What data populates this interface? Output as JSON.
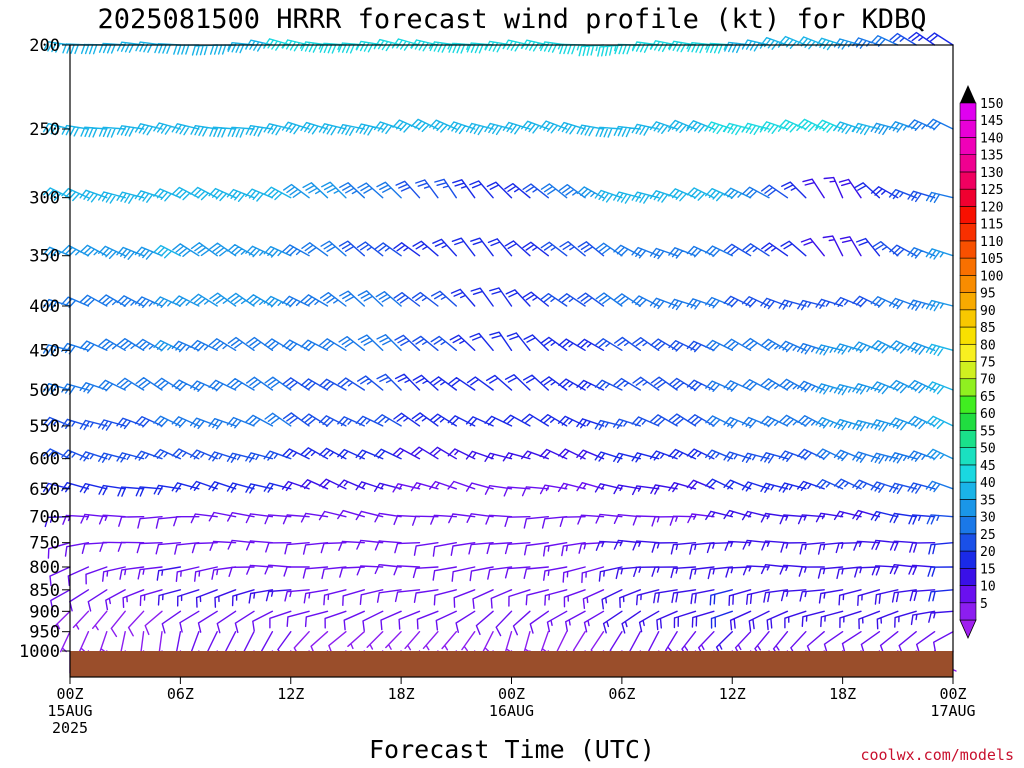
{
  "chart_data": {
    "type": "wind-barb time-height",
    "title": "2025081500 HRRR forecast wind profile (kt) for KDBQ",
    "xlabel": "Forecast Time (UTC)",
    "credit": "coolwx.com/models",
    "y_axis": {
      "scale": "log-pressure, inverted",
      "ylim": [
        1000,
        200
      ],
      "ticks": [
        200,
        250,
        300,
        350,
        400,
        450,
        500,
        550,
        600,
        650,
        700,
        750,
        800,
        850,
        900,
        950,
        1000
      ]
    },
    "x_axis": {
      "xlim_hours": [
        0,
        48
      ],
      "ticks": [
        {
          "h": 0,
          "line1": "00Z",
          "line2": "15AUG",
          "line3": "2025"
        },
        {
          "h": 6,
          "line1": "06Z",
          "line2": "",
          "line3": ""
        },
        {
          "h": 12,
          "line1": "12Z",
          "line2": "",
          "line3": ""
        },
        {
          "h": 18,
          "line1": "18Z",
          "line2": "",
          "line3": ""
        },
        {
          "h": 24,
          "line1": "00Z",
          "line2": "16AUG",
          "line3": ""
        },
        {
          "h": 30,
          "line1": "06Z",
          "line2": "",
          "line3": ""
        },
        {
          "h": 36,
          "line1": "12Z",
          "line2": "",
          "line3": ""
        },
        {
          "h": 42,
          "line1": "18Z",
          "line2": "",
          "line3": ""
        },
        {
          "h": 48,
          "line1": "00Z",
          "line2": "17AUG",
          "line3": ""
        }
      ]
    },
    "ground_color": "#9a4e2b",
    "colorbar": {
      "units": "kt",
      "levels": [
        5,
        10,
        15,
        20,
        25,
        30,
        35,
        40,
        45,
        50,
        55,
        60,
        65,
        70,
        75,
        80,
        85,
        90,
        95,
        100,
        105,
        110,
        115,
        120,
        125,
        130,
        135,
        140,
        145,
        150
      ],
      "colors": [
        "#8c1ef0",
        "#6a10f0",
        "#3a10e8",
        "#1a2ae8",
        "#1a50e8",
        "#1a78e8",
        "#1a96e8",
        "#1ab4e8",
        "#1ad8e0",
        "#1ae0c0",
        "#1ae08a",
        "#20dd40",
        "#40ee20",
        "#90f020",
        "#d0f020",
        "#f8f020",
        "#f8e000",
        "#f8c800",
        "#f8aa00",
        "#f88c00",
        "#f87000",
        "#f85000",
        "#f83000",
        "#f81000",
        "#f00030",
        "#f00060",
        "#f00090",
        "#f000b8",
        "#e800d8",
        "#e000f0"
      ]
    },
    "wind_profile_kt": {
      "levels_hPa": [
        1000,
        950,
        900,
        850,
        800,
        750,
        700,
        650,
        600,
        550,
        500,
        450,
        400,
        350,
        300,
        250,
        200
      ],
      "anchor_hours": [
        0,
        6,
        12,
        18,
        24,
        30,
        36,
        42,
        48
      ],
      "speed_rows": [
        [
          5,
          5,
          5,
          5,
          5,
          5,
          5,
          5,
          5
        ],
        [
          5,
          10,
          10,
          5,
          5,
          10,
          15,
          10,
          10
        ],
        [
          5,
          10,
          10,
          10,
          10,
          15,
          20,
          15,
          15
        ],
        [
          10,
          15,
          15,
          10,
          10,
          15,
          20,
          15,
          20
        ],
        [
          10,
          15,
          10,
          10,
          10,
          15,
          15,
          15,
          20
        ],
        [
          10,
          10,
          10,
          10,
          10,
          15,
          15,
          15,
          20
        ],
        [
          15,
          10,
          10,
          10,
          10,
          10,
          15,
          15,
          25
        ],
        [
          20,
          20,
          20,
          15,
          10,
          15,
          20,
          25,
          30
        ],
        [
          25,
          25,
          25,
          20,
          15,
          20,
          25,
          30,
          35
        ],
        [
          25,
          30,
          30,
          25,
          20,
          25,
          30,
          35,
          40
        ],
        [
          30,
          30,
          30,
          25,
          20,
          25,
          30,
          35,
          40
        ],
        [
          30,
          35,
          30,
          30,
          20,
          25,
          30,
          35,
          40
        ],
        [
          30,
          35,
          35,
          30,
          20,
          30,
          30,
          25,
          35
        ],
        [
          35,
          40,
          35,
          25,
          20,
          30,
          30,
          15,
          35
        ],
        [
          40,
          40,
          40,
          30,
          20,
          40,
          40,
          15,
          30
        ],
        [
          40,
          40,
          40,
          40,
          40,
          40,
          45,
          45,
          30
        ],
        [
          40,
          40,
          45,
          45,
          45,
          45,
          45,
          40,
          20
        ]
      ],
      "dir_rows": [
        [
          180,
          160,
          190,
          200,
          180,
          170,
          160,
          180,
          190
        ],
        [
          200,
          190,
          220,
          230,
          200,
          210,
          220,
          230,
          240
        ],
        [
          220,
          230,
          250,
          250,
          230,
          240,
          250,
          250,
          260
        ],
        [
          240,
          250,
          260,
          260,
          250,
          250,
          260,
          260,
          260
        ],
        [
          250,
          260,
          270,
          270,
          260,
          260,
          270,
          270,
          270
        ],
        [
          260,
          270,
          270,
          270,
          260,
          270,
          270,
          270,
          270
        ],
        [
          270,
          270,
          280,
          280,
          270,
          270,
          280,
          280,
          280
        ],
        [
          280,
          280,
          290,
          290,
          280,
          280,
          290,
          290,
          290
        ],
        [
          290,
          290,
          290,
          300,
          290,
          290,
          290,
          290,
          290
        ],
        [
          290,
          290,
          300,
          300,
          300,
          290,
          300,
          290,
          290
        ],
        [
          290,
          300,
          300,
          310,
          310,
          300,
          300,
          290,
          290
        ],
        [
          290,
          300,
          300,
          310,
          320,
          300,
          300,
          290,
          290
        ],
        [
          290,
          300,
          300,
          310,
          320,
          300,
          290,
          290,
          290
        ],
        [
          290,
          300,
          300,
          310,
          320,
          300,
          290,
          330,
          290
        ],
        [
          290,
          290,
          300,
          320,
          320,
          290,
          290,
          330,
          280
        ],
        [
          280,
          280,
          280,
          290,
          290,
          280,
          290,
          290,
          290
        ],
        [
          280,
          270,
          280,
          280,
          280,
          270,
          280,
          290,
          300
        ]
      ]
    }
  }
}
